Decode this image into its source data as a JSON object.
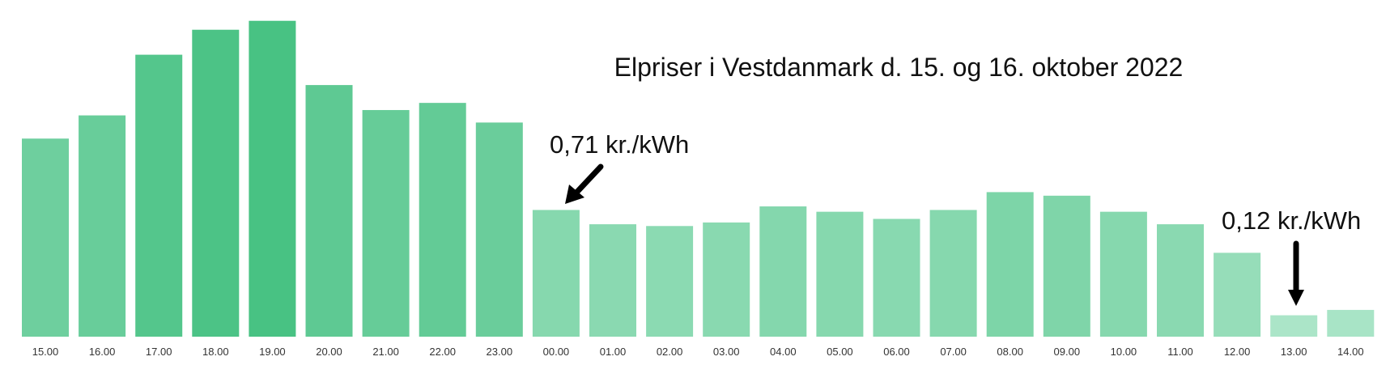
{
  "chart_data": {
    "type": "bar",
    "title": "Elpriser i Vestdanmark d. 15. og 16. oktober 2022",
    "categories": [
      "15.00",
      "16.00",
      "17.00",
      "18.00",
      "19.00",
      "20.00",
      "21.00",
      "22.00",
      "23.00",
      "00.00",
      "01.00",
      "02.00",
      "03.00",
      "04.00",
      "05.00",
      "06.00",
      "07.00",
      "08.00",
      "09.00",
      "10.00",
      "11.00",
      "12.00",
      "13.00",
      "14.00"
    ],
    "values": [
      1.11,
      1.24,
      1.58,
      1.72,
      1.77,
      1.41,
      1.27,
      1.31,
      1.2,
      0.71,
      0.63,
      0.62,
      0.64,
      0.73,
      0.7,
      0.66,
      0.71,
      0.81,
      0.79,
      0.7,
      0.63,
      0.47,
      0.12,
      0.15
    ],
    "colors": [
      "#6ecf9e",
      "#68cd9a",
      "#54c68c",
      "#4cc386",
      "#48c283",
      "#5ec993",
      "#66cc98",
      "#63cb96",
      "#6acd9b",
      "#86d8ae",
      "#8ad9b1",
      "#8bdab2",
      "#89d9b0",
      "#84d7ad",
      "#86d8ae",
      "#88d9b0",
      "#86d8ae",
      "#7dd5a8",
      "#7fd5a9",
      "#86d8ae",
      "#8ad9b1",
      "#96ddb9",
      "#abe5c8",
      "#a8e4c6"
    ],
    "annotations": [
      {
        "text": "0,71 kr./kWh",
        "category": "00.00"
      },
      {
        "text": "0,12 kr./kWh",
        "category": "13.00"
      }
    ]
  }
}
